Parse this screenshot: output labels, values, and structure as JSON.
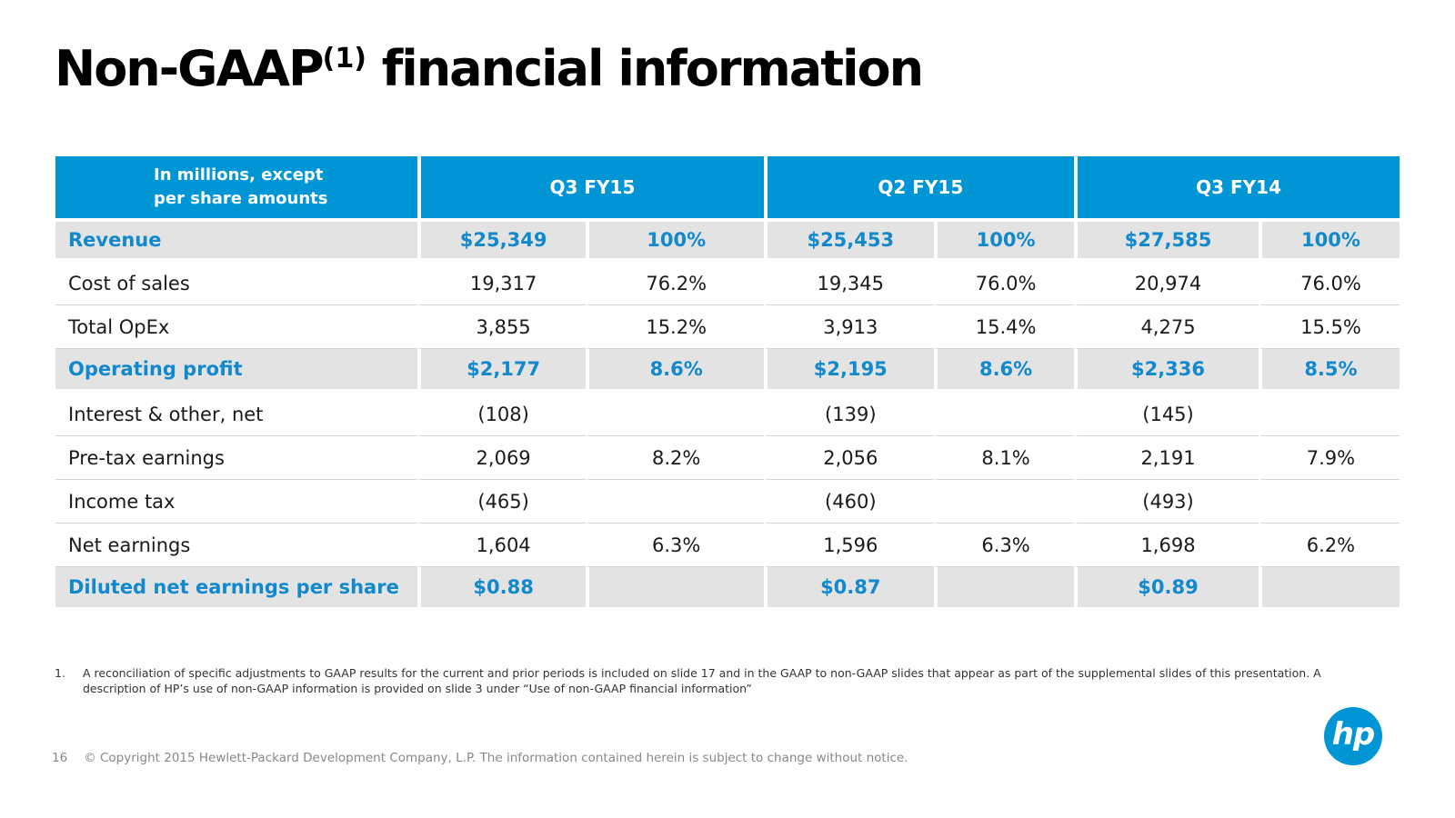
{
  "title": {
    "main_left": "Non-GAAP",
    "superscript": "(1)",
    "main_right": " financial information"
  },
  "table": {
    "header": {
      "label_line1": "In millions, except",
      "label_line2": "per share amounts",
      "periods": [
        "Q3 FY15",
        "Q2 FY15",
        "Q3 FY14"
      ]
    },
    "rows": [
      {
        "label": "Revenue",
        "highlight": true,
        "cells": [
          "$25,349",
          "100%",
          "$25,453",
          "100%",
          "$27,585",
          "100%"
        ]
      },
      {
        "label": "Cost of sales",
        "highlight": false,
        "cells": [
          "19,317",
          "76.2%",
          "19,345",
          "76.0%",
          "20,974",
          "76.0%"
        ]
      },
      {
        "label": "Total OpEx",
        "highlight": false,
        "cells": [
          "3,855",
          "15.2%",
          "3,913",
          "15.4%",
          "4,275",
          "15.5%"
        ]
      },
      {
        "label": "Operating profit",
        "highlight": true,
        "cells": [
          "$2,177",
          "8.6%",
          "$2,195",
          "8.6%",
          "$2,336",
          "8.5%"
        ]
      },
      {
        "label": "Interest & other, net",
        "highlight": false,
        "cells": [
          "(108)",
          "",
          "(139)",
          "",
          "(145)",
          ""
        ]
      },
      {
        "label": "Pre-tax earnings",
        "highlight": false,
        "cells": [
          "2,069",
          "8.2%",
          "2,056",
          "8.1%",
          "2,191",
          "7.9%"
        ]
      },
      {
        "label": "Income tax",
        "highlight": false,
        "cells": [
          "(465)",
          "",
          "(460)",
          "",
          "(493)",
          ""
        ]
      },
      {
        "label": "Net earnings",
        "highlight": false,
        "cells": [
          "1,604",
          "6.3%",
          "1,596",
          "6.3%",
          "1,698",
          "6.2%"
        ]
      },
      {
        "label": "Diluted net earnings per share",
        "highlight": true,
        "cells": [
          "$0.88",
          "",
          "$0.87",
          "",
          "$0.89",
          ""
        ]
      }
    ]
  },
  "footnote": {
    "number": "1.",
    "text": "A reconciliation of specific adjustments to GAAP results for the current and prior periods is included on slide 17 and in the GAAP to non-GAAP slides that appear as part of the supplemental slides of this presentation. A description of HP’s use of non-GAAP information is provided on slide 3 under “Use of non-GAAP financial information”"
  },
  "footer": {
    "page_number": "16",
    "copyright": "© Copyright 2015 Hewlett-Packard Development Company, L.P.  The information contained herein is subject to change without notice."
  },
  "logo": {
    "text": "hp",
    "color": "#0096d6"
  },
  "colors": {
    "header_blue": "#0096d6",
    "highlight_text": "#1189cc",
    "highlight_bg": "#e3e3e3"
  }
}
